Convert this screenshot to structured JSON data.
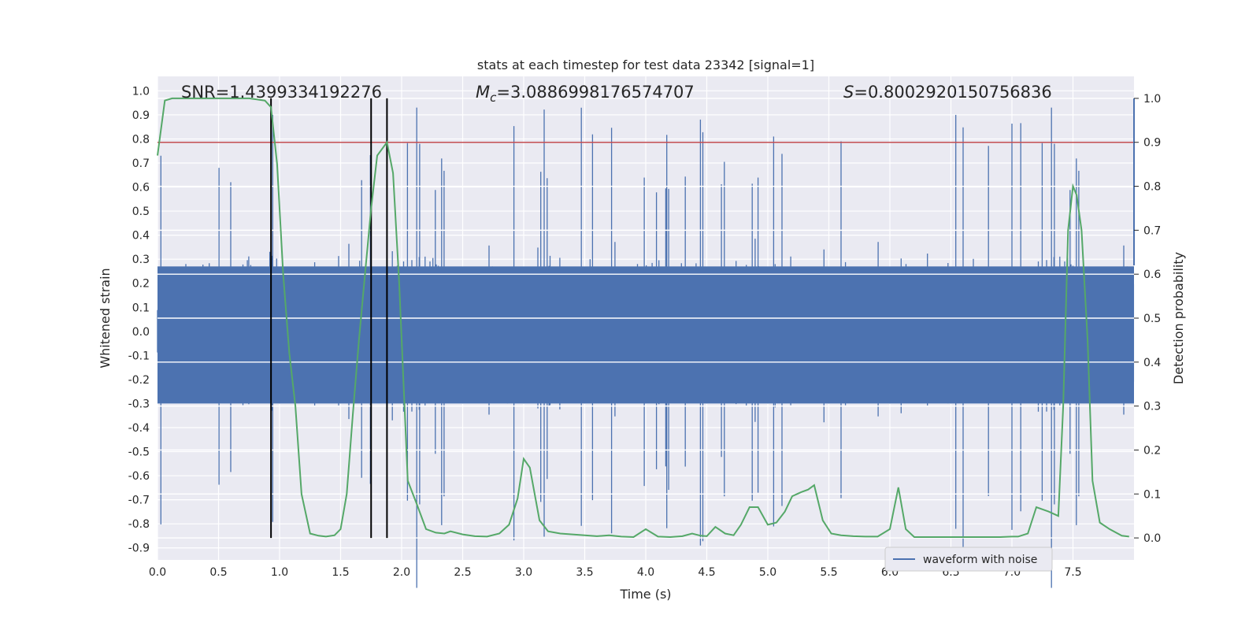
{
  "chart_data": {
    "type": "line",
    "title": "stats at each timestep for test data 23342 [signal=1]",
    "xlabel": "Time (s)",
    "ylabel_left": "Whitened strain",
    "ylabel_right": "Detection probability",
    "xlim": [
      0.0,
      8.0
    ],
    "ylim_left": [
      -0.95,
      1.06
    ],
    "ylim_right": [
      -0.05,
      1.05
    ],
    "x_ticks": [
      "0.0",
      "0.5",
      "1.0",
      "1.5",
      "2.0",
      "2.5",
      "3.0",
      "3.5",
      "4.0",
      "4.5",
      "5.0",
      "5.5",
      "6.0",
      "6.5",
      "7.0",
      "7.5"
    ],
    "y_left_ticks": [
      "1.0",
      "0.9",
      "0.8",
      "0.7",
      "0.6",
      "0.5",
      "0.4",
      "0.3",
      "0.2",
      "0.1",
      "0.0",
      "-0.1",
      "-0.2",
      "-0.3",
      "-0.4",
      "-0.5",
      "-0.6",
      "-0.7",
      "-0.8",
      "-0.9"
    ],
    "y_right_ticks": [
      "1.0",
      "0.9",
      "0.8",
      "0.7",
      "0.6",
      "0.5",
      "0.4",
      "0.3",
      "0.2",
      "0.1",
      "0.0"
    ],
    "stats": {
      "snr_label": "SNR=1.4399334192276",
      "mc_prefix": "M",
      "mc_sub": "c",
      "mc_value": "=3.0886998176574707",
      "s_prefix": "S",
      "s_value": "=0.8002920150756836"
    },
    "threshold": 0.9,
    "vertical_lines_s": [
      0.93,
      1.75,
      1.88
    ],
    "legend": {
      "label": "waveform with noise",
      "position": "lower-right"
    },
    "grid": true,
    "series": [
      {
        "name": "waveform with noise",
        "color": "#4c72b0",
        "sample_rate_hz": 250,
        "duration_s": 8.0,
        "noise_range": [
          -0.55,
          0.55
        ]
      },
      {
        "color": "#55a868",
        "axis": "right",
        "x": [
          0.0,
          0.06,
          0.12,
          0.2,
          0.3,
          0.45,
          0.6,
          0.75,
          0.88,
          0.93,
          0.98,
          1.03,
          1.08,
          1.13,
          1.18,
          1.25,
          1.32,
          1.38,
          1.45,
          1.5,
          1.55,
          1.6,
          1.65,
          1.7,
          1.75,
          1.8,
          1.88,
          1.93,
          1.98,
          2.05,
          2.12,
          2.2,
          2.28,
          2.35,
          2.4,
          2.5,
          2.6,
          2.7,
          2.8,
          2.88,
          2.95,
          3.0,
          3.05,
          3.13,
          3.2,
          3.3,
          3.4,
          3.5,
          3.6,
          3.7,
          3.8,
          3.9,
          4.0,
          4.1,
          4.2,
          4.3,
          4.38,
          4.45,
          4.5,
          4.57,
          4.65,
          4.72,
          4.78,
          4.85,
          4.92,
          5.0,
          5.07,
          5.14,
          5.2,
          5.28,
          5.33,
          5.38,
          5.45,
          5.52,
          5.6,
          5.7,
          5.8,
          5.9,
          6.0,
          6.07,
          6.13,
          6.2,
          6.3,
          6.5,
          6.7,
          6.9,
          7.0,
          7.05,
          7.13,
          7.2,
          7.3,
          7.38,
          7.42,
          7.46,
          7.5,
          7.53,
          7.57,
          7.62,
          7.66,
          7.72,
          7.8,
          7.9,
          7.96
        ],
        "y": [
          0.87,
          0.995,
          1.0,
          1.0,
          1.0,
          1.0,
          1.0,
          1.0,
          0.995,
          0.98,
          0.85,
          0.6,
          0.42,
          0.3,
          0.1,
          0.01,
          0.005,
          0.003,
          0.006,
          0.02,
          0.1,
          0.28,
          0.45,
          0.6,
          0.75,
          0.87,
          0.9,
          0.83,
          0.58,
          0.13,
          0.08,
          0.02,
          0.012,
          0.01,
          0.015,
          0.008,
          0.004,
          0.003,
          0.01,
          0.03,
          0.09,
          0.18,
          0.16,
          0.04,
          0.015,
          0.01,
          0.008,
          0.006,
          0.004,
          0.006,
          0.003,
          0.002,
          0.02,
          0.003,
          0.002,
          0.004,
          0.01,
          0.005,
          0.004,
          0.025,
          0.01,
          0.006,
          0.03,
          0.07,
          0.07,
          0.03,
          0.035,
          0.06,
          0.095,
          0.105,
          0.11,
          0.12,
          0.04,
          0.01,
          0.006,
          0.004,
          0.003,
          0.003,
          0.02,
          0.115,
          0.02,
          0.002,
          0.002,
          0.002,
          0.002,
          0.002,
          0.003,
          0.003,
          0.01,
          0.07,
          0.06,
          0.05,
          0.3,
          0.7,
          0.8,
          0.78,
          0.7,
          0.45,
          0.13,
          0.035,
          0.02,
          0.005,
          0.003
        ]
      }
    ]
  }
}
